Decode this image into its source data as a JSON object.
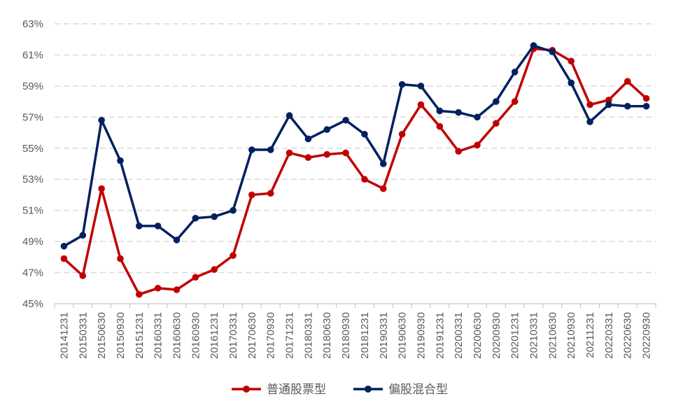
{
  "chart_data": {
    "type": "line",
    "title": "",
    "xlabel": "",
    "ylabel": "",
    "ylim": [
      45,
      63
    ],
    "y_tick_values": [
      45,
      47,
      49,
      51,
      53,
      55,
      57,
      59,
      61,
      63
    ],
    "y_tick_labels": [
      "45%",
      "47%",
      "49%",
      "51%",
      "53%",
      "55%",
      "57%",
      "59%",
      "61%",
      "63%"
    ],
    "grid": "horizontal-dashed",
    "legend_position": "bottom",
    "categories": [
      "20141231",
      "20150331",
      "20150630",
      "20150930",
      "20151231",
      "20160331",
      "20160630",
      "20160930",
      "20161231",
      "20170331",
      "20170630",
      "20170930",
      "20171231",
      "20180331",
      "20180630",
      "20180930",
      "20181231",
      "20190331",
      "20190630",
      "20190930",
      "20191231",
      "20200331",
      "20200630",
      "20200930",
      "20201231",
      "20210331",
      "20210630",
      "20210930",
      "20211231",
      "20220331",
      "20220630",
      "20220930"
    ],
    "series": [
      {
        "name": "普通股票型",
        "color": "#C00000",
        "values": [
          47.9,
          46.8,
          52.4,
          47.9,
          45.6,
          46.0,
          45.9,
          46.7,
          47.2,
          48.1,
          52.0,
          52.1,
          54.7,
          54.4,
          54.6,
          54.7,
          53.0,
          52.4,
          55.9,
          57.8,
          56.4,
          54.8,
          55.2,
          56.6,
          58.0,
          61.4,
          61.3,
          60.6,
          57.8,
          58.1,
          59.3,
          58.2
        ]
      },
      {
        "name": "偏股混合型",
        "color": "#002060",
        "values": [
          48.7,
          49.4,
          56.8,
          54.2,
          50.0,
          50.0,
          49.1,
          50.5,
          50.6,
          51.0,
          54.9,
          54.9,
          57.1,
          55.6,
          56.2,
          56.8,
          55.9,
          54.0,
          59.1,
          59.0,
          57.4,
          57.3,
          57.0,
          58.0,
          59.9,
          61.6,
          61.2,
          59.2,
          56.7,
          57.8,
          57.7,
          57.7
        ]
      }
    ]
  }
}
